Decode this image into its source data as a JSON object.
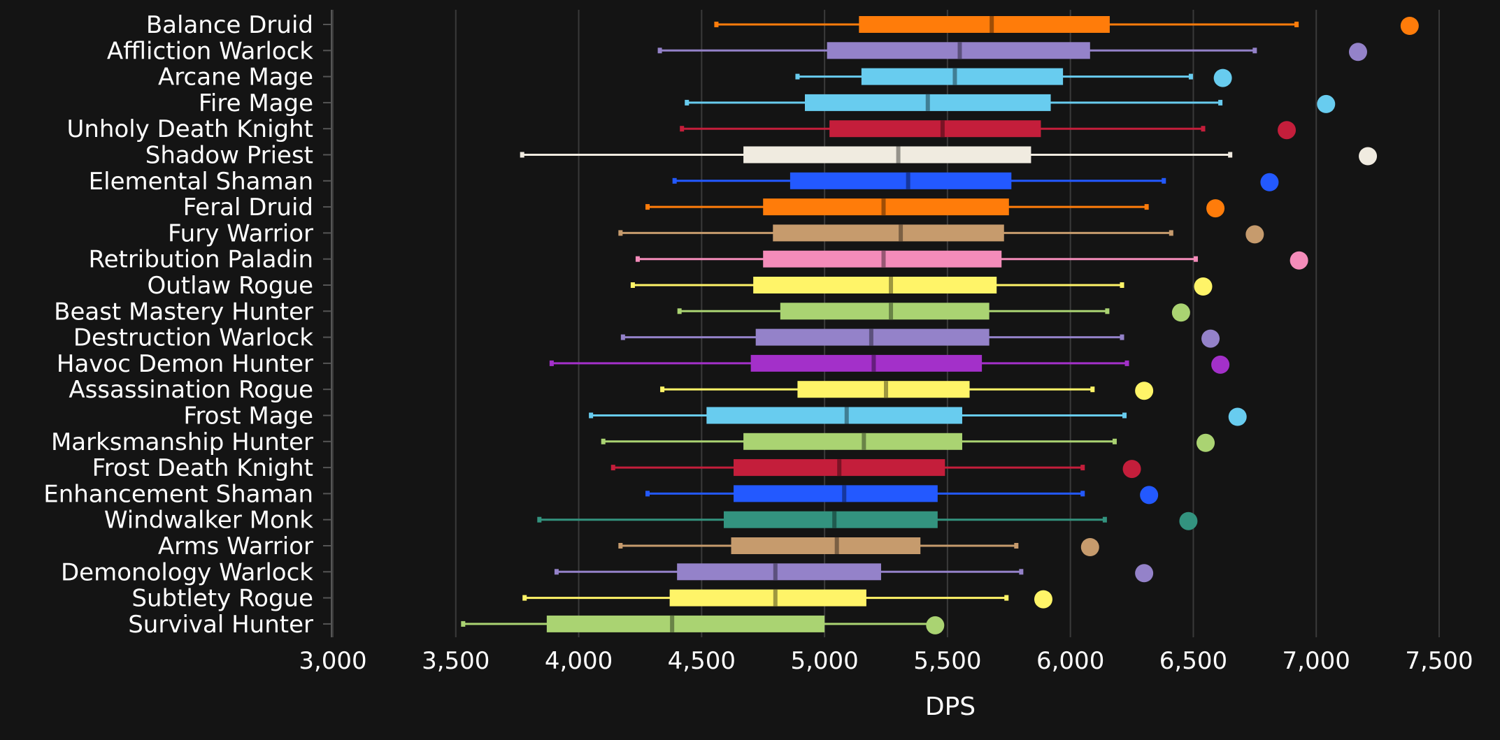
{
  "chart_data": {
    "type": "box",
    "xlabel": "DPS",
    "ylabel": "",
    "xlim": [
      3000,
      7500
    ],
    "xticks": [
      3000,
      3500,
      4000,
      4500,
      5000,
      5500,
      6000,
      6500,
      7000,
      7500
    ],
    "xtick_labels": [
      "3,000",
      "3,500",
      "4,000",
      "4,500",
      "5,000",
      "5,500",
      "6,000",
      "6,500",
      "7,000",
      "7,500"
    ],
    "grid": "vertical",
    "series": [
      {
        "name": "Balance Druid",
        "color": "#ff7c0a",
        "min": 4560,
        "q1": 5140,
        "median": 5680,
        "q3": 6160,
        "max": 6920,
        "outlier": 7380
      },
      {
        "name": "Affliction Warlock",
        "color": "#9482c9",
        "min": 4330,
        "q1": 5010,
        "median": 5550,
        "q3": 6080,
        "max": 6750,
        "outlier": 7170
      },
      {
        "name": "Arcane Mage",
        "color": "#68ccef",
        "min": 4890,
        "q1": 5150,
        "median": 5530,
        "q3": 5970,
        "max": 6490,
        "outlier": 6620
      },
      {
        "name": "Fire Mage",
        "color": "#68ccef",
        "min": 4440,
        "q1": 4920,
        "median": 5420,
        "q3": 5920,
        "max": 6610,
        "outlier": 7040
      },
      {
        "name": "Unholy Death Knight",
        "color": "#c41e3b",
        "min": 4420,
        "q1": 5020,
        "median": 5480,
        "q3": 5880,
        "max": 6540,
        "outlier": 6880
      },
      {
        "name": "Shadow Priest",
        "color": "#f0ebe0",
        "min": 3770,
        "q1": 4670,
        "median": 5300,
        "q3": 5840,
        "max": 6650,
        "outlier": 7210
      },
      {
        "name": "Elemental Shaman",
        "color": "#2359ff",
        "min": 4390,
        "q1": 4860,
        "median": 5340,
        "q3": 5760,
        "max": 6380,
        "outlier": 6810
      },
      {
        "name": "Feral Druid",
        "color": "#ff7c0a",
        "min": 4280,
        "q1": 4750,
        "median": 5240,
        "q3": 5750,
        "max": 6310,
        "outlier": 6590
      },
      {
        "name": "Fury Warrior",
        "color": "#c69b6d",
        "min": 4170,
        "q1": 4790,
        "median": 5310,
        "q3": 5730,
        "max": 6410,
        "outlier": 6750
      },
      {
        "name": "Retribution Paladin",
        "color": "#f48cba",
        "min": 4240,
        "q1": 4750,
        "median": 5240,
        "q3": 5720,
        "max": 6510,
        "outlier": 6930
      },
      {
        "name": "Outlaw Rogue",
        "color": "#fff468",
        "min": 4220,
        "q1": 4710,
        "median": 5270,
        "q3": 5700,
        "max": 6210,
        "outlier": 6540
      },
      {
        "name": "Beast Mastery Hunter",
        "color": "#aad372",
        "min": 4410,
        "q1": 4820,
        "median": 5270,
        "q3": 5670,
        "max": 6150,
        "outlier": 6450
      },
      {
        "name": "Destruction Warlock",
        "color": "#9482c9",
        "min": 4180,
        "q1": 4720,
        "median": 5190,
        "q3": 5670,
        "max": 6210,
        "outlier": 6570
      },
      {
        "name": "Havoc Demon Hunter",
        "color": "#a330c9",
        "min": 3890,
        "q1": 4700,
        "median": 5200,
        "q3": 5640,
        "max": 6230,
        "outlier": 6610
      },
      {
        "name": "Assassination Rogue",
        "color": "#fff468",
        "min": 4340,
        "q1": 4890,
        "median": 5250,
        "q3": 5590,
        "max": 6090,
        "outlier": 6300
      },
      {
        "name": "Frost Mage",
        "color": "#68ccef",
        "min": 4050,
        "q1": 4520,
        "median": 5090,
        "q3": 5560,
        "max": 6220,
        "outlier": 6680
      },
      {
        "name": "Marksmanship Hunter",
        "color": "#aad372",
        "min": 4100,
        "q1": 4670,
        "median": 5160,
        "q3": 5560,
        "max": 6180,
        "outlier": 6550
      },
      {
        "name": "Frost Death Knight",
        "color": "#c41e3b",
        "min": 4140,
        "q1": 4630,
        "median": 5060,
        "q3": 5490,
        "max": 6050,
        "outlier": 6250
      },
      {
        "name": "Enhancement Shaman",
        "color": "#2359ff",
        "min": 4280,
        "q1": 4630,
        "median": 5080,
        "q3": 5460,
        "max": 6050,
        "outlier": 6320
      },
      {
        "name": "Windwalker Monk",
        "color": "#33937f",
        "min": 3840,
        "q1": 4590,
        "median": 5040,
        "q3": 5460,
        "max": 6140,
        "outlier": 6480
      },
      {
        "name": "Arms Warrior",
        "color": "#c69b6d",
        "min": 4170,
        "q1": 4620,
        "median": 5050,
        "q3": 5390,
        "max": 5780,
        "outlier": 6080
      },
      {
        "name": "Demonology Warlock",
        "color": "#9482c9",
        "min": 3910,
        "q1": 4400,
        "median": 4800,
        "q3": 5230,
        "max": 5800,
        "outlier": 6300
      },
      {
        "name": "Subtlety Rogue",
        "color": "#fff468",
        "min": 3780,
        "q1": 4370,
        "median": 4800,
        "q3": 5170,
        "max": 5740,
        "outlier": 5890
      },
      {
        "name": "Survival Hunter",
        "color": "#aad372",
        "min": 3530,
        "q1": 3870,
        "median": 4380,
        "q3": 5000,
        "max": 5450,
        "outlier": 5450
      }
    ]
  }
}
